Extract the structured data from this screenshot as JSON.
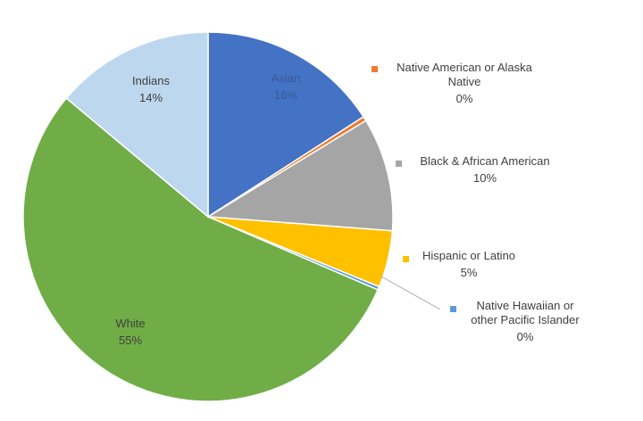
{
  "chart_data": {
    "type": "pie",
    "start_angle_deg": 0,
    "direction": "clockwise",
    "slices": [
      {
        "label": "Asian",
        "value": 16,
        "display": "16%",
        "color": "#4472C4",
        "label_color": "#3a5a9a"
      },
      {
        "label": "Native American or Alaska Native",
        "label_lines": [
          "Native American or Alaska",
          "Native"
        ],
        "value": 0.4,
        "display": "0%",
        "color": "#ED7D31"
      },
      {
        "label": "Black & African American",
        "value": 10,
        "display": "10%",
        "color": "#A5A5A5"
      },
      {
        "label": "Hispanic or Latino",
        "value": 5,
        "display": "5%",
        "color": "#FFC000"
      },
      {
        "label": "Native Hawaiian or other Pacific Islander",
        "label_lines": [
          "Native Hawaiian or",
          "other Pacific Islander"
        ],
        "value": 0.3,
        "display": "0%",
        "color": "#5B9BD5"
      },
      {
        "label": "White",
        "value": 55,
        "display": "55%",
        "color": "#70AD47",
        "label_color": "#404040"
      },
      {
        "label": "Indians",
        "value": 14,
        "display": "14%",
        "color": "#BDD7EE",
        "label_color": "#404040"
      }
    ],
    "legend": "callouts outside right"
  }
}
